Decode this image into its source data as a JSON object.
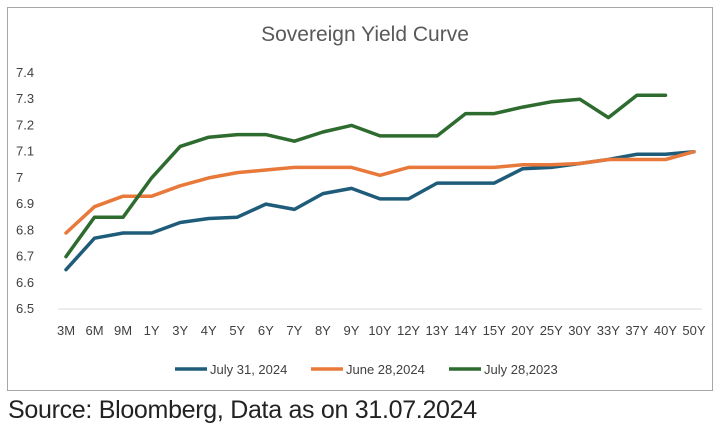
{
  "chart_data": {
    "type": "line",
    "title": "Sovereign Yield Curve",
    "xlabel": "",
    "ylabel": "",
    "categories": [
      "3M",
      "6M",
      "9M",
      "1Y",
      "3Y",
      "4Y",
      "5Y",
      "6Y",
      "7Y",
      "8Y",
      "9Y",
      "10Y",
      "12Y",
      "13Y",
      "14Y",
      "15Y",
      "20Y",
      "25Y",
      "30Y",
      "33Y",
      "37Y",
      "40Y",
      "50Y"
    ],
    "ylim": [
      6.5,
      7.4
    ],
    "yticks": [
      "6.5",
      "6.6",
      "6.7",
      "6.8",
      "6.9",
      "7",
      "7.1",
      "7.2",
      "7.3",
      "7.4"
    ],
    "grid": false,
    "legend_position": "bottom",
    "series": [
      {
        "name": "July 31, 2024",
        "color": "#1f5c7a",
        "values": [
          6.65,
          6.77,
          6.79,
          6.79,
          6.83,
          6.845,
          6.85,
          6.9,
          6.88,
          6.94,
          6.96,
          6.92,
          6.92,
          6.98,
          6.98,
          6.98,
          7.035,
          7.04,
          7.055,
          7.07,
          7.09,
          7.09,
          7.1
        ]
      },
      {
        "name": "June 28,2024",
        "color": "#e8793a",
        "values": [
          6.79,
          6.89,
          6.93,
          6.93,
          6.97,
          7.0,
          7.02,
          7.03,
          7.04,
          7.04,
          7.04,
          7.01,
          7.04,
          7.04,
          7.04,
          7.04,
          7.05,
          7.05,
          7.055,
          7.07,
          7.07,
          7.07,
          7.1
        ]
      },
      {
        "name": "July 28,2023",
        "color": "#2e6b2f",
        "values": [
          6.7,
          6.85,
          6.85,
          7.0,
          7.12,
          7.155,
          7.165,
          7.165,
          7.14,
          7.175,
          7.2,
          7.16,
          7.16,
          7.16,
          7.245,
          7.245,
          7.27,
          7.29,
          7.3,
          7.23,
          7.315,
          7.315,
          null
        ]
      }
    ]
  },
  "footer": {
    "source": "Source: Bloomberg, Data as on 31.07.2024"
  }
}
